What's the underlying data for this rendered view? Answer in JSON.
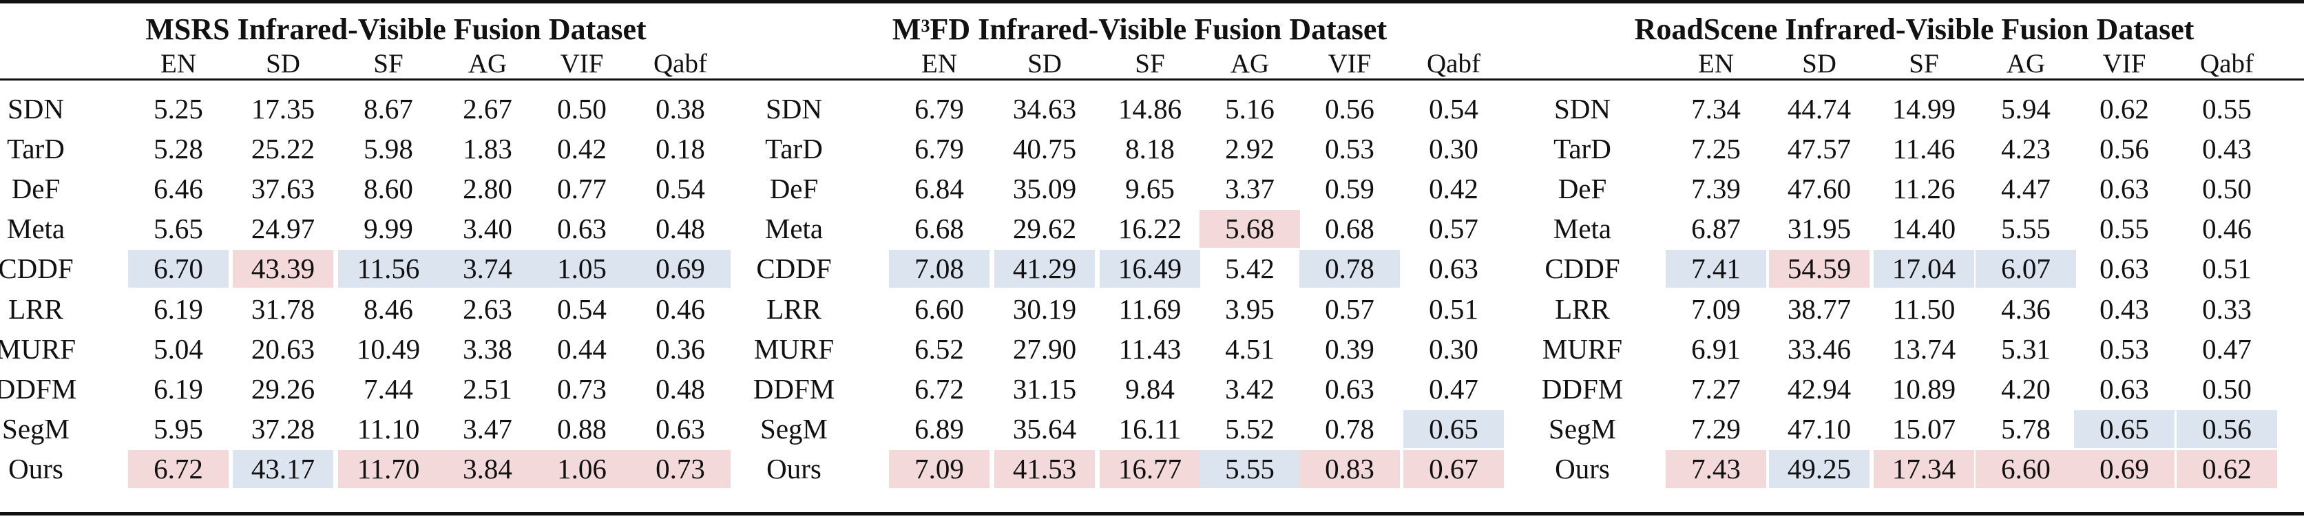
{
  "groups": [
    {
      "title": "MSRS Infrared-Visible Fusion Dataset"
    },
    {
      "title_prefix": "M",
      "title_sup": "3",
      "title_rest": "FD Infrared-Visible Fusion Dataset"
    },
    {
      "title": "RoadScene Infrared-Visible Fusion Dataset"
    }
  ],
  "metrics": [
    "EN",
    "SD",
    "SF",
    "AG",
    "VIF",
    "Qabf"
  ],
  "methods": [
    "SDN",
    "TarD",
    "DeF",
    "Meta",
    "CDDF",
    "LRR",
    "MURF",
    "DDFM",
    "SegM",
    "Ours"
  ],
  "values": [
    [
      [
        "5.25",
        "17.35",
        "8.67",
        "2.67",
        "0.50",
        "0.38"
      ],
      [
        "5.28",
        "25.22",
        "5.98",
        "1.83",
        "0.42",
        "0.18"
      ],
      [
        "6.46",
        "37.63",
        "8.60",
        "2.80",
        "0.77",
        "0.54"
      ],
      [
        "5.65",
        "24.97",
        "9.99",
        "3.40",
        "0.63",
        "0.48"
      ],
      [
        "6.70",
        "43.39",
        "11.56",
        "3.74",
        "1.05",
        "0.69"
      ],
      [
        "6.19",
        "31.78",
        "8.46",
        "2.63",
        "0.54",
        "0.46"
      ],
      [
        "5.04",
        "20.63",
        "10.49",
        "3.38",
        "0.44",
        "0.36"
      ],
      [
        "6.19",
        "29.26",
        "7.44",
        "2.51",
        "0.73",
        "0.48"
      ],
      [
        "5.95",
        "37.28",
        "11.10",
        "3.47",
        "0.88",
        "0.63"
      ],
      [
        "6.72",
        "43.17",
        "11.70",
        "3.84",
        "1.06",
        "0.73"
      ]
    ],
    [
      [
        "6.79",
        "34.63",
        "14.86",
        "5.16",
        "0.56",
        "0.54"
      ],
      [
        "6.79",
        "40.75",
        "8.18",
        "2.92",
        "0.53",
        "0.30"
      ],
      [
        "6.84",
        "35.09",
        "9.65",
        "3.37",
        "0.59",
        "0.42"
      ],
      [
        "6.68",
        "29.62",
        "16.22",
        "5.68",
        "0.68",
        "0.57"
      ],
      [
        "7.08",
        "41.29",
        "16.49",
        "5.42",
        "0.78",
        "0.63"
      ],
      [
        "6.60",
        "30.19",
        "11.69",
        "3.95",
        "0.57",
        "0.51"
      ],
      [
        "6.52",
        "27.90",
        "11.43",
        "4.51",
        "0.39",
        "0.30"
      ],
      [
        "6.72",
        "31.15",
        "9.84",
        "3.42",
        "0.63",
        "0.47"
      ],
      [
        "6.89",
        "35.64",
        "16.11",
        "5.52",
        "0.78",
        "0.65"
      ],
      [
        "7.09",
        "41.53",
        "16.77",
        "5.55",
        "0.83",
        "0.67"
      ]
    ],
    [
      [
        "7.34",
        "44.74",
        "14.99",
        "5.94",
        "0.62",
        "0.55"
      ],
      [
        "7.25",
        "47.57",
        "11.46",
        "4.23",
        "0.56",
        "0.43"
      ],
      [
        "7.39",
        "47.60",
        "11.26",
        "4.47",
        "0.63",
        "0.50"
      ],
      [
        "6.87",
        "31.95",
        "14.40",
        "5.55",
        "0.55",
        "0.46"
      ],
      [
        "7.41",
        "54.59",
        "17.04",
        "6.07",
        "0.63",
        "0.51"
      ],
      [
        "7.09",
        "38.77",
        "11.50",
        "4.36",
        "0.43",
        "0.33"
      ],
      [
        "6.91",
        "33.46",
        "13.74",
        "5.31",
        "0.53",
        "0.47"
      ],
      [
        "7.27",
        "42.94",
        "10.89",
        "4.20",
        "0.63",
        "0.50"
      ],
      [
        "7.29",
        "47.10",
        "15.07",
        "5.78",
        "0.65",
        "0.56"
      ],
      [
        "7.43",
        "49.25",
        "17.34",
        "6.60",
        "0.69",
        "0.62"
      ]
    ]
  ],
  "highlights": {
    "best": "#f3d9d9",
    "second": "#dbe4ef",
    "cells": [
      {
        "g": 0,
        "r": 4,
        "c": 0,
        "k": "second"
      },
      {
        "g": 0,
        "r": 4,
        "c": 1,
        "k": "best"
      },
      {
        "g": 0,
        "r": 4,
        "c": 2,
        "k": "second"
      },
      {
        "g": 0,
        "r": 4,
        "c": 3,
        "k": "second"
      },
      {
        "g": 0,
        "r": 4,
        "c": 4,
        "k": "second"
      },
      {
        "g": 0,
        "r": 4,
        "c": 5,
        "k": "second"
      },
      {
        "g": 0,
        "r": 9,
        "c": 0,
        "k": "best"
      },
      {
        "g": 0,
        "r": 9,
        "c": 1,
        "k": "second"
      },
      {
        "g": 0,
        "r": 9,
        "c": 2,
        "k": "best"
      },
      {
        "g": 0,
        "r": 9,
        "c": 3,
        "k": "best"
      },
      {
        "g": 0,
        "r": 9,
        "c": 4,
        "k": "best"
      },
      {
        "g": 0,
        "r": 9,
        "c": 5,
        "k": "best"
      },
      {
        "g": 1,
        "r": 3,
        "c": 3,
        "k": "best"
      },
      {
        "g": 1,
        "r": 4,
        "c": 0,
        "k": "second"
      },
      {
        "g": 1,
        "r": 4,
        "c": 1,
        "k": "second"
      },
      {
        "g": 1,
        "r": 4,
        "c": 2,
        "k": "second"
      },
      {
        "g": 1,
        "r": 4,
        "c": 4,
        "k": "second"
      },
      {
        "g": 1,
        "r": 8,
        "c": 5,
        "k": "second"
      },
      {
        "g": 1,
        "r": 9,
        "c": 0,
        "k": "best"
      },
      {
        "g": 1,
        "r": 9,
        "c": 1,
        "k": "best"
      },
      {
        "g": 1,
        "r": 9,
        "c": 2,
        "k": "best"
      },
      {
        "g": 1,
        "r": 9,
        "c": 3,
        "k": "second"
      },
      {
        "g": 1,
        "r": 9,
        "c": 4,
        "k": "best"
      },
      {
        "g": 1,
        "r": 9,
        "c": 5,
        "k": "best"
      },
      {
        "g": 2,
        "r": 4,
        "c": 0,
        "k": "second"
      },
      {
        "g": 2,
        "r": 4,
        "c": 1,
        "k": "best"
      },
      {
        "g": 2,
        "r": 4,
        "c": 2,
        "k": "second"
      },
      {
        "g": 2,
        "r": 4,
        "c": 3,
        "k": "second"
      },
      {
        "g": 2,
        "r": 8,
        "c": 4,
        "k": "second"
      },
      {
        "g": 2,
        "r": 8,
        "c": 5,
        "k": "second"
      },
      {
        "g": 2,
        "r": 9,
        "c": 0,
        "k": "best"
      },
      {
        "g": 2,
        "r": 9,
        "c": 1,
        "k": "second"
      },
      {
        "g": 2,
        "r": 9,
        "c": 2,
        "k": "best"
      },
      {
        "g": 2,
        "r": 9,
        "c": 3,
        "k": "best"
      },
      {
        "g": 2,
        "r": 9,
        "c": 4,
        "k": "best"
      },
      {
        "g": 2,
        "r": 9,
        "c": 5,
        "k": "best"
      }
    ]
  }
}
